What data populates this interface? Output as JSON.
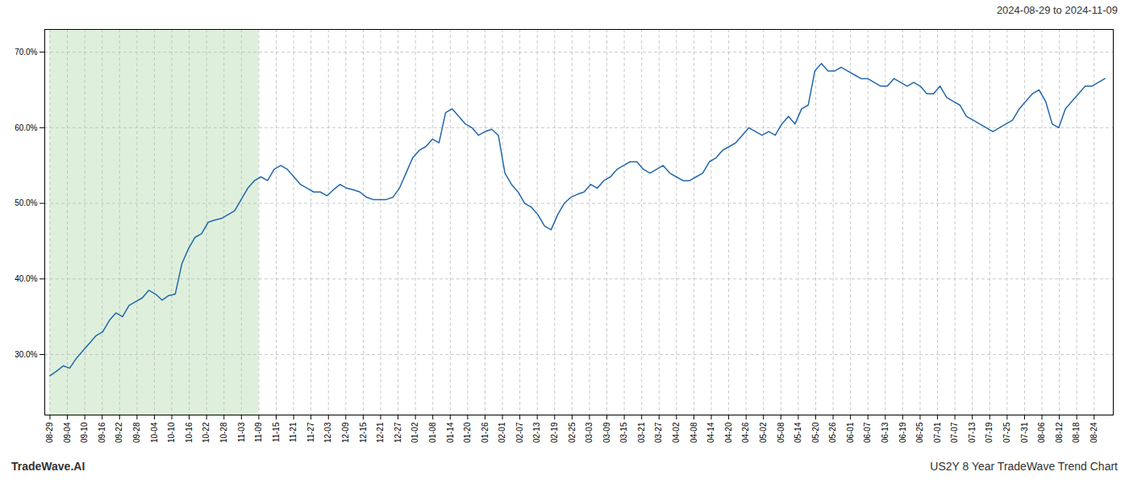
{
  "chart_data": {
    "type": "line",
    "title": "2024-08-29 to 2024-11-09",
    "annotations": [
      "TradeWave.AI",
      "US2Y 8 Year TradeWave Trend Chart"
    ],
    "color": "#2166ac",
    "grid": true,
    "highlight": {
      "start": 0,
      "end": 31.6721,
      "color": "#c8e6c4"
    },
    "xlim": [
      -0.7918,
      161.2639
    ],
    "xticks": [
      {
        "value": 0,
        "label": "08-29"
      },
      {
        "value": 2.6393,
        "label": "09-04"
      },
      {
        "value": 5.2787,
        "label": "09-10"
      },
      {
        "value": 7.918,
        "label": "09-16"
      },
      {
        "value": 10.5574,
        "label": "09-22"
      },
      {
        "value": 13.1967,
        "label": "09-28"
      },
      {
        "value": 15.8361,
        "label": "10-04"
      },
      {
        "value": 18.4754,
        "label": "10-10"
      },
      {
        "value": 21.1148,
        "label": "10-16"
      },
      {
        "value": 23.7541,
        "label": "10-22"
      },
      {
        "value": 26.3934,
        "label": "10-28"
      },
      {
        "value": 29.0328,
        "label": "11-03"
      },
      {
        "value": 31.6721,
        "label": "11-09"
      },
      {
        "value": 34.3115,
        "label": "11-15"
      },
      {
        "value": 36.9508,
        "label": "11-21"
      },
      {
        "value": 39.5902,
        "label": "11-27"
      },
      {
        "value": 42.2295,
        "label": "12-03"
      },
      {
        "value": 44.8689,
        "label": "12-09"
      },
      {
        "value": 47.5082,
        "label": "12-15"
      },
      {
        "value": 50.1475,
        "label": "12-21"
      },
      {
        "value": 52.7869,
        "label": "12-27"
      },
      {
        "value": 55.4262,
        "label": "01-02"
      },
      {
        "value": 58.0656,
        "label": "01-08"
      },
      {
        "value": 60.7049,
        "label": "01-14"
      },
      {
        "value": 63.3443,
        "label": "01-20"
      },
      {
        "value": 65.9836,
        "label": "01-26"
      },
      {
        "value": 68.623,
        "label": "02-01"
      },
      {
        "value": 71.2623,
        "label": "02-07"
      },
      {
        "value": 73.9016,
        "label": "02-13"
      },
      {
        "value": 76.541,
        "label": "02-19"
      },
      {
        "value": 79.1803,
        "label": "02-25"
      },
      {
        "value": 81.8197,
        "label": "03-03"
      },
      {
        "value": 84.459,
        "label": "03-09"
      },
      {
        "value": 87.0984,
        "label": "03-15"
      },
      {
        "value": 89.7377,
        "label": "03-21"
      },
      {
        "value": 92.377,
        "label": "03-27"
      },
      {
        "value": 95.0164,
        "label": "04-02"
      },
      {
        "value": 97.6557,
        "label": "04-08"
      },
      {
        "value": 100.2951,
        "label": "04-14"
      },
      {
        "value": 102.9344,
        "label": "04-20"
      },
      {
        "value": 105.5738,
        "label": "04-26"
      },
      {
        "value": 108.2131,
        "label": "05-02"
      },
      {
        "value": 110.8525,
        "label": "05-08"
      },
      {
        "value": 113.4918,
        "label": "05-14"
      },
      {
        "value": 116.1311,
        "label": "05-20"
      },
      {
        "value": 118.7705,
        "label": "05-26"
      },
      {
        "value": 121.4098,
        "label": "06-01"
      },
      {
        "value": 124.0492,
        "label": "06-07"
      },
      {
        "value": 126.6885,
        "label": "06-13"
      },
      {
        "value": 129.3279,
        "label": "06-19"
      },
      {
        "value": 131.9672,
        "label": "06-25"
      },
      {
        "value": 134.6066,
        "label": "07-01"
      },
      {
        "value": 137.2459,
        "label": "07-07"
      },
      {
        "value": 139.8852,
        "label": "07-13"
      },
      {
        "value": 142.5246,
        "label": "07-19"
      },
      {
        "value": 145.1639,
        "label": "07-25"
      },
      {
        "value": 147.8033,
        "label": "07-31"
      },
      {
        "value": 150.4426,
        "label": "08-06"
      },
      {
        "value": 153.082,
        "label": "08-12"
      },
      {
        "value": 155.7213,
        "label": "08-18"
      },
      {
        "value": 158.3607,
        "label": "08-24"
      }
    ],
    "ylim": [
      22,
      73
    ],
    "yticks": [
      {
        "value": 30,
        "label": "30.0%"
      },
      {
        "value": 40,
        "label": "40.0%"
      },
      {
        "value": 50,
        "label": "50.0%"
      },
      {
        "value": 60,
        "label": "60.0%"
      },
      {
        "value": 70,
        "label": "70.0%"
      }
    ],
    "x": [
      0,
      1,
      2,
      3,
      4,
      5,
      6,
      7,
      8,
      9,
      10,
      11,
      12,
      13,
      14,
      15,
      16,
      17,
      18,
      19,
      20,
      21,
      22,
      23,
      24,
      25,
      26,
      27,
      28,
      29,
      30,
      31,
      32,
      33,
      34,
      35,
      36,
      37,
      38,
      39,
      40,
      41,
      42,
      43,
      44,
      45,
      46,
      47,
      48,
      49,
      50,
      51,
      52,
      53,
      54,
      55,
      56,
      57,
      58,
      59,
      60,
      61,
      62,
      63,
      64,
      65,
      66,
      67,
      68,
      69,
      70,
      71,
      72,
      73,
      74,
      75,
      76,
      77,
      78,
      79,
      80,
      81,
      82,
      83,
      84,
      85,
      86,
      87,
      88,
      89,
      90,
      91,
      92,
      93,
      94,
      95,
      96,
      97,
      98,
      99,
      100,
      101,
      102,
      103,
      104,
      105,
      106,
      107,
      108,
      109,
      110,
      111,
      112,
      113,
      114,
      115,
      116,
      117,
      118,
      119,
      120,
      121,
      122,
      123,
      124,
      125,
      126,
      127,
      128,
      129,
      130,
      131,
      132,
      133,
      134,
      135,
      136,
      137,
      138,
      139,
      140,
      141,
      142,
      143,
      144,
      145,
      146,
      147,
      148,
      149,
      150,
      151,
      152,
      153,
      154,
      155,
      156,
      157,
      158,
      159,
      160
    ],
    "values": [
      27.2,
      27.8,
      28.5,
      28.2,
      29.5,
      30.5,
      31.5,
      32.5,
      33.0,
      34.5,
      35.5,
      35.0,
      36.5,
      37.0,
      37.5,
      38.5,
      38.0,
      37.2,
      37.8,
      38.0,
      42.0,
      44.0,
      45.5,
      46.0,
      47.5,
      47.8,
      48.0,
      48.5,
      49.0,
      50.5,
      52.0,
      53.0,
      53.5,
      53.0,
      54.5,
      55.0,
      54.5,
      53.5,
      52.5,
      52.0,
      51.5,
      51.5,
      51.0,
      51.8,
      52.5,
      52.0,
      51.8,
      51.5,
      50.8,
      50.5,
      50.5,
      50.5,
      50.8,
      52.0,
      54.0,
      56.0,
      57.0,
      57.5,
      58.5,
      58.0,
      62.0,
      62.5,
      61.5,
      60.5,
      60.0,
      59.0,
      59.5,
      59.8,
      59.0,
      54.0,
      52.5,
      51.5,
      50.0,
      49.5,
      48.5,
      47.0,
      46.5,
      48.5,
      50.0,
      50.8,
      51.2,
      51.5,
      52.5,
      52.0,
      53.0,
      53.5,
      54.5,
      55.0,
      55.5,
      55.5,
      54.5,
      54.0,
      54.5,
      55.0,
      54.0,
      53.5,
      53.0,
      53.0,
      53.5,
      54.0,
      55.5,
      56.0,
      57.0,
      57.5,
      58.0,
      59.0,
      60.0,
      59.5,
      59.0,
      59.5,
      59.0,
      60.5,
      61.5,
      60.5,
      62.5,
      63.0,
      67.5,
      68.5,
      67.5,
      67.5,
      68.0,
      67.5,
      67.0,
      66.5,
      66.5,
      66.0,
      65.5,
      65.5,
      66.5,
      66.0,
      65.5,
      66.0,
      65.5,
      64.5,
      64.5,
      65.5,
      64.0,
      63.5,
      63.0,
      61.5,
      61.0,
      60.5,
      60.0,
      59.5,
      60.0,
      60.5,
      61.0,
      62.5,
      63.5,
      64.5,
      65.0,
      63.5,
      60.5,
      60.0,
      62.5,
      63.5,
      64.5,
      65.5,
      65.5,
      66.0,
      66.5
    ]
  }
}
